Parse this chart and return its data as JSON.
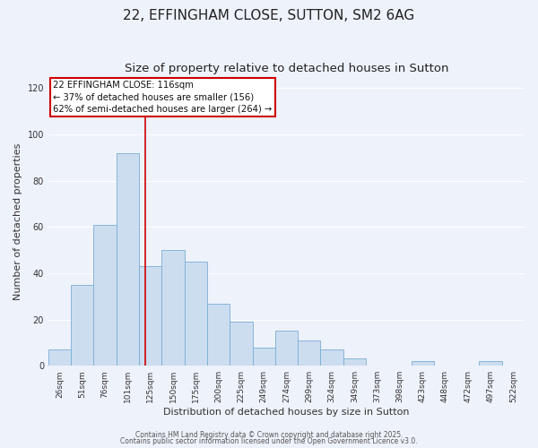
{
  "title": "22, EFFINGHAM CLOSE, SUTTON, SM2 6AG",
  "subtitle": "Size of property relative to detached houses in Sutton",
  "xlabel": "Distribution of detached houses by size in Sutton",
  "ylabel": "Number of detached properties",
  "categories": [
    "26sqm",
    "51sqm",
    "76sqm",
    "101sqm",
    "125sqm",
    "150sqm",
    "175sqm",
    "200sqm",
    "225sqm",
    "249sqm",
    "274sqm",
    "299sqm",
    "324sqm",
    "349sqm",
    "373sqm",
    "398sqm",
    "423sqm",
    "448sqm",
    "472sqm",
    "497sqm",
    "522sqm"
  ],
  "values": [
    7,
    35,
    61,
    92,
    43,
    50,
    45,
    27,
    19,
    8,
    15,
    11,
    7,
    3,
    0,
    0,
    2,
    0,
    0,
    2,
    0
  ],
  "bar_color": "#ccddf0",
  "bar_edge_color": "#7aadd4",
  "vline_x": 3.78,
  "vline_color": "#cc0000",
  "annotation_text": "22 EFFINGHAM CLOSE: 116sqm\n← 37% of detached houses are smaller (156)\n62% of semi-detached houses are larger (264) →",
  "annotation_box_color": "#ffffff",
  "annotation_box_edge_color": "#cc0000",
  "ylim": [
    0,
    125
  ],
  "yticks": [
    0,
    20,
    40,
    60,
    80,
    100,
    120
  ],
  "background_color": "#eef2fb",
  "grid_color": "#ffffff",
  "footer1": "Contains HM Land Registry data © Crown copyright and database right 2025.",
  "footer2": "Contains public sector information licensed under the Open Government Licence v3.0.",
  "title_fontsize": 11,
  "subtitle_fontsize": 9.5,
  "tick_fontsize": 6.5,
  "ylabel_fontsize": 8,
  "xlabel_fontsize": 8,
  "annotation_fontsize": 7.2
}
